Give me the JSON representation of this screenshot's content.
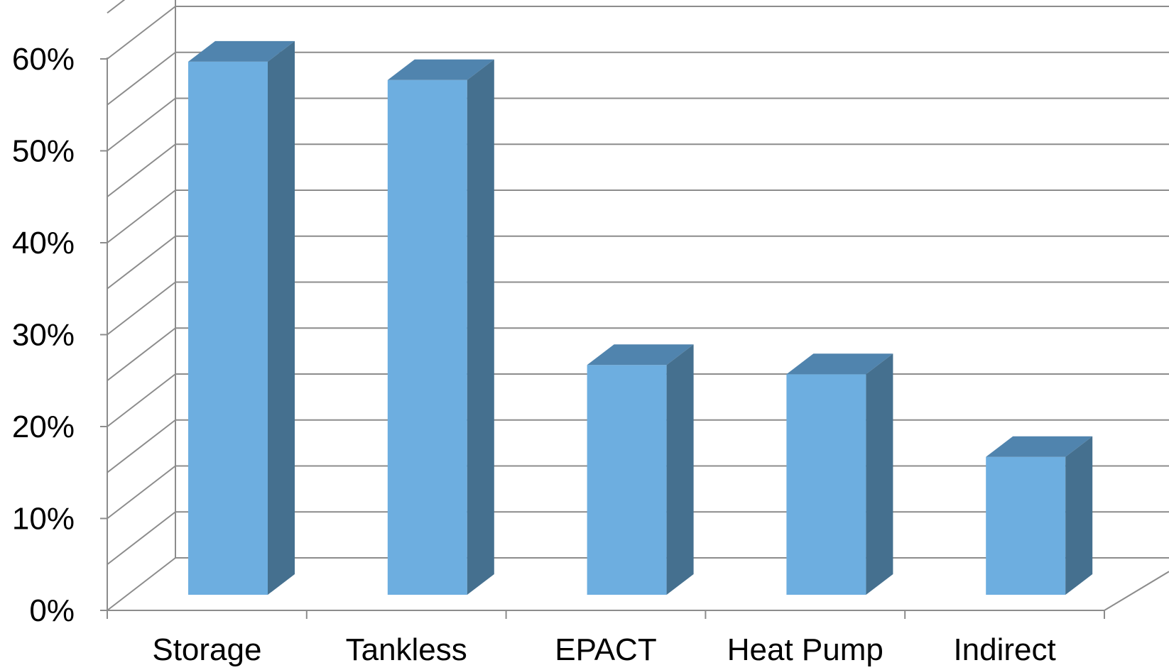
{
  "chart_data": {
    "type": "bar",
    "style": "3d-column",
    "categories": [
      "Storage",
      "Tankless",
      "EPACT",
      "Heat Pump",
      "Indirect"
    ],
    "values": [
      58,
      56,
      25,
      24,
      15
    ],
    "ytick_labels": [
      "0%",
      "10%",
      "20%",
      "30%",
      "40%",
      "50%",
      "60%"
    ],
    "ylim": [
      0,
      65
    ],
    "grid": true,
    "legend": "none",
    "title": "",
    "xlabel": "",
    "ylabel": ""
  },
  "colors": {
    "bar_front": "#6daee0",
    "bar_top": "#5084ae",
    "bar_side": "#45708f",
    "grid": "#8c8c8c",
    "text": "#000000"
  }
}
